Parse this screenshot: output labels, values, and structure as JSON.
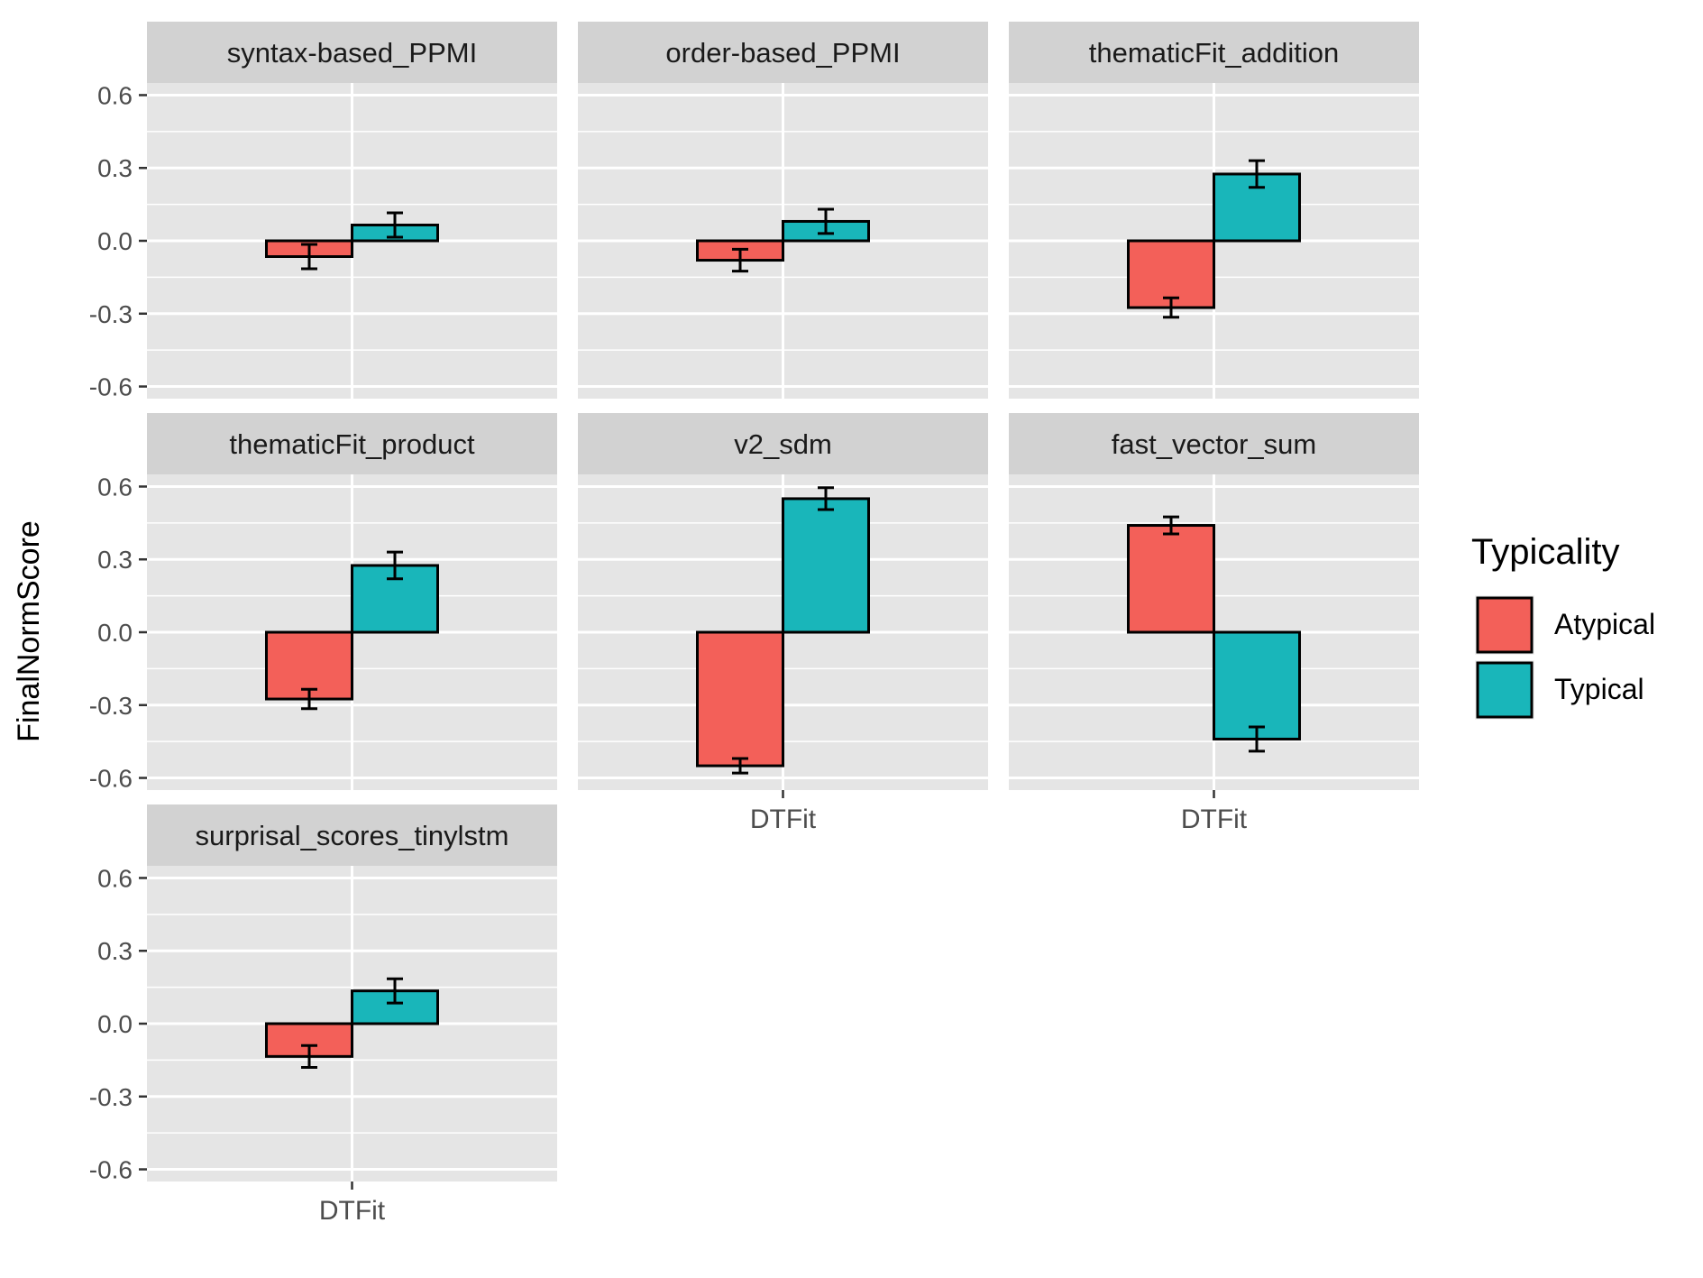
{
  "chart_data": {
    "type": "bar",
    "layout": "faceted",
    "ylabel": "FinalNormScore",
    "xlabel": "",
    "ylim": [
      -0.65,
      0.65
    ],
    "yticks": [
      "0.6",
      "0.3",
      "0.0",
      "-0.3",
      "-0.6"
    ],
    "ytick_values": [
      0.6,
      0.3,
      0.0,
      -0.3,
      -0.6
    ],
    "categories": [
      "DTFit"
    ],
    "legend": {
      "title": "Typicality",
      "position": "right",
      "entries": [
        {
          "name": "Atypical",
          "color": "#F8766D"
        },
        {
          "name": "Typical",
          "color": "#00BFC4"
        }
      ]
    },
    "colors": {
      "atypical": "#F36059",
      "typical": "#19B6BA",
      "panel_bg": "#E5E5E5",
      "strip_bg": "#D2D2D2",
      "grid": "#FFFFFF",
      "bar_outline": "#000000"
    },
    "panels": [
      {
        "name": "syntax-based_PPMI",
        "atypical": -0.065,
        "atypical_err": 0.05,
        "typical": 0.065,
        "typical_err": 0.05
      },
      {
        "name": "order-based_PPMI",
        "atypical": -0.08,
        "atypical_err": 0.045,
        "typical": 0.08,
        "typical_err": 0.05
      },
      {
        "name": "thematicFit_addition",
        "atypical": -0.275,
        "atypical_err": 0.04,
        "typical": 0.275,
        "typical_err": 0.055
      },
      {
        "name": "thematicFit_product",
        "atypical": -0.275,
        "atypical_err": 0.04,
        "typical": 0.275,
        "typical_err": 0.055
      },
      {
        "name": "v2_sdm",
        "atypical": -0.55,
        "atypical_err": 0.03,
        "typical": 0.55,
        "typical_err": 0.045
      },
      {
        "name": "fast_vector_sum",
        "atypical": 0.44,
        "atypical_err": 0.035,
        "typical": -0.44,
        "typical_err": 0.05
      },
      {
        "name": "surprisal_scores_tinylstm",
        "atypical": -0.135,
        "atypical_err": 0.045,
        "typical": 0.135,
        "typical_err": 0.05
      }
    ]
  }
}
